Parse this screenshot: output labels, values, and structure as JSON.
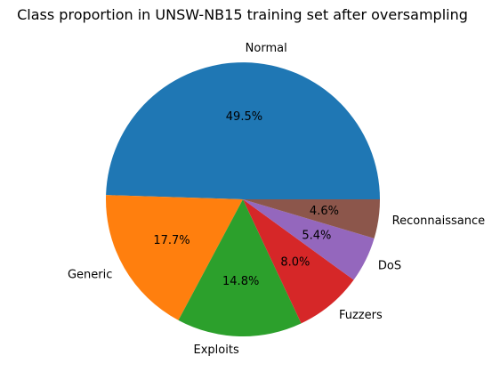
{
  "chart_data": {
    "type": "pie",
    "title": "Class proportion in UNSW-NB15 training set after oversampling",
    "slices": [
      {
        "label": "Normal",
        "value": 49.5,
        "pct_label": "49.5%",
        "color": "#1f77b4"
      },
      {
        "label": "Generic",
        "value": 17.7,
        "pct_label": "17.7%",
        "color": "#ff7f0e"
      },
      {
        "label": "Exploits",
        "value": 14.8,
        "pct_label": "14.8%",
        "color": "#2ca02c"
      },
      {
        "label": "Fuzzers",
        "value": 8.0,
        "pct_label": "8.0%",
        "color": "#d62728"
      },
      {
        "label": "DoS",
        "value": 5.4,
        "pct_label": "5.4%",
        "color": "#9467bd"
      },
      {
        "label": "Reconnaissance",
        "value": 4.6,
        "pct_label": "4.6%",
        "color": "#8c564b"
      }
    ],
    "start_angle_deg": 0,
    "direction": "counterclockwise",
    "grid": false,
    "legend": "none"
  }
}
